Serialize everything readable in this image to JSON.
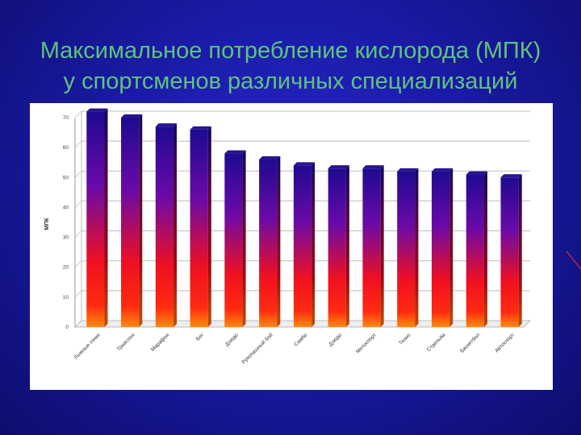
{
  "slide": {
    "title_line1": "Максимальное потребление кислорода (МПК)",
    "title_line2": "у спортсменов различных специализаций",
    "background_color": "#1a1aa6",
    "title_color": "#5fc47a"
  },
  "chart_data": {
    "type": "bar",
    "title": "",
    "xlabel": "",
    "ylabel": "МПК",
    "ylim": [
      0,
      70
    ],
    "yticks": [
      0,
      10,
      20,
      30,
      40,
      50,
      60,
      70
    ],
    "grid": true,
    "legend": "none",
    "bar_gradient": [
      "#1a0a8c",
      "#ff1010",
      "#ff7a10"
    ],
    "categories": [
      "Лыжные гонки",
      "Триатлон",
      "Марафон",
      "Бег",
      "Дзюдо",
      "Рукопашный бой",
      "Самбо",
      "Дзюдо",
      "Мотоспорт",
      "Тенис",
      "Стрельба",
      "Баскетбол",
      "Автоспорт"
    ],
    "values": [
      72,
      70,
      67,
      66,
      58,
      56,
      54,
      53,
      53,
      52,
      52,
      51,
      50
    ]
  }
}
